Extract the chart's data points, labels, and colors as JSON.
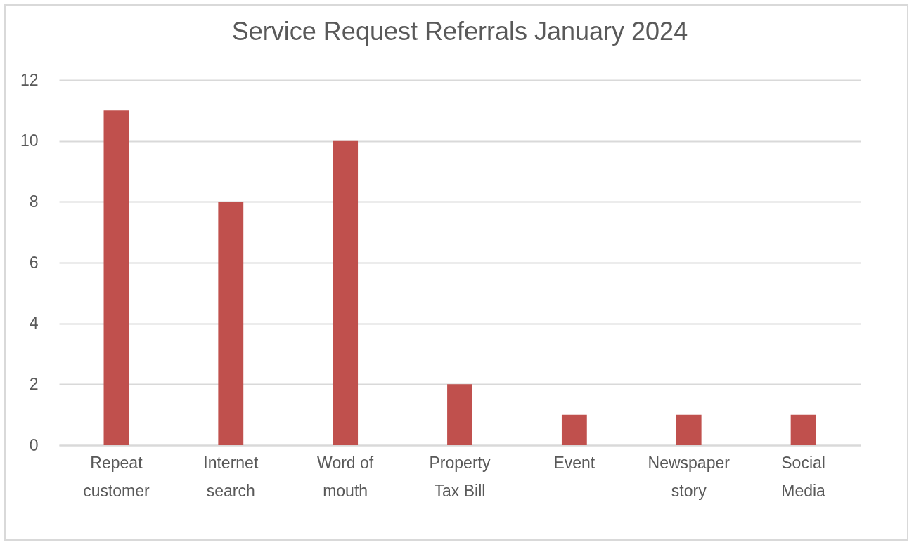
{
  "chart_data": {
    "type": "bar",
    "title": "Service Request Referrals January 2024",
    "categories": [
      "Repeat customer",
      "Internet search",
      "Word of mouth",
      "Property Tax Bill",
      "Event",
      "Newspaper story",
      "Social Media"
    ],
    "values": [
      11,
      8,
      10,
      2,
      1,
      1,
      1
    ],
    "color": "#c0504d",
    "ylim": [
      0,
      12
    ],
    "yticks": [
      0,
      2,
      4,
      6,
      8,
      10,
      12
    ],
    "grid": "y"
  }
}
